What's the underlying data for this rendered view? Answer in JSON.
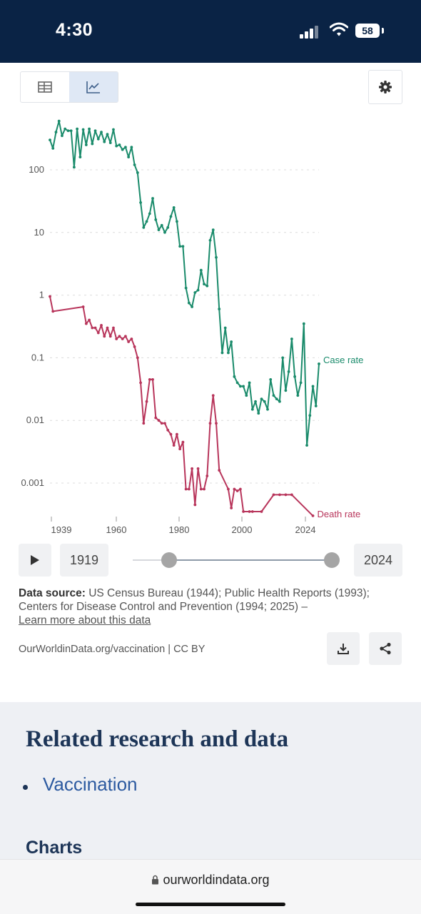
{
  "status_bar": {
    "time": "4:30",
    "battery": "58"
  },
  "chart_data": {
    "type": "line",
    "yscale": "log",
    "ylim": [
      0.00025,
      700
    ],
    "xlim": [
      1939,
      2024
    ],
    "x_ticks": [
      "1939",
      "1960",
      "1980",
      "2000",
      "2024"
    ],
    "y_ticks": [
      {
        "value": 100,
        "label": "100"
      },
      {
        "value": 10,
        "label": "10"
      },
      {
        "value": 1,
        "label": "1"
      },
      {
        "value": 0.1,
        "label": "0.1"
      },
      {
        "value": 0.01,
        "label": "0.01"
      },
      {
        "value": 0.001,
        "label": "0.001"
      }
    ],
    "grid": "horizontal dashed",
    "series": [
      {
        "name": "Case rate",
        "color": "#1a8b6b",
        "points": [
          [
            1939,
            300
          ],
          [
            1940,
            220
          ],
          [
            1941,
            400
          ],
          [
            1942,
            600
          ],
          [
            1943,
            350
          ],
          [
            1944,
            450
          ],
          [
            1945,
            420
          ],
          [
            1946,
            420
          ],
          [
            1947,
            110
          ],
          [
            1948,
            450
          ],
          [
            1949,
            160
          ],
          [
            1950,
            440
          ],
          [
            1951,
            250
          ],
          [
            1952,
            450
          ],
          [
            1953,
            260
          ],
          [
            1954,
            420
          ],
          [
            1955,
            310
          ],
          [
            1956,
            400
          ],
          [
            1957,
            280
          ],
          [
            1958,
            370
          ],
          [
            1959,
            270
          ],
          [
            1960,
            440
          ],
          [
            1961,
            240
          ],
          [
            1962,
            250
          ],
          [
            1963,
            210
          ],
          [
            1964,
            230
          ],
          [
            1965,
            160
          ],
          [
            1966,
            230
          ],
          [
            1967,
            120
          ],
          [
            1968,
            90
          ],
          [
            1969,
            30
          ],
          [
            1970,
            12
          ],
          [
            1971,
            15
          ],
          [
            1972,
            20
          ],
          [
            1973,
            35
          ],
          [
            1974,
            16
          ],
          [
            1975,
            11
          ],
          [
            1976,
            13
          ],
          [
            1977,
            10
          ],
          [
            1978,
            12
          ],
          [
            1979,
            18
          ],
          [
            1980,
            25
          ],
          [
            1981,
            15
          ],
          [
            1982,
            6
          ],
          [
            1983,
            6
          ],
          [
            1984,
            1.3
          ],
          [
            1985,
            0.75
          ],
          [
            1986,
            0.65
          ],
          [
            1987,
            1.1
          ],
          [
            1988,
            1.2
          ],
          [
            1989,
            2.5
          ],
          [
            1990,
            1.5
          ],
          [
            1991,
            1.4
          ],
          [
            1992,
            7.5
          ],
          [
            1993,
            11
          ],
          [
            1994,
            4
          ],
          [
            1995,
            0.6
          ],
          [
            1996,
            0.12
          ],
          [
            1997,
            0.3
          ],
          [
            1998,
            0.12
          ],
          [
            1999,
            0.18
          ],
          [
            2000,
            0.05
          ],
          [
            2001,
            0.04
          ],
          [
            2002,
            0.035
          ],
          [
            2003,
            0.035
          ],
          [
            2004,
            0.025
          ],
          [
            2005,
            0.04
          ],
          [
            2006,
            0.015
          ],
          [
            2007,
            0.02
          ],
          [
            2008,
            0.013
          ],
          [
            2009,
            0.022
          ],
          [
            2010,
            0.02
          ],
          [
            2011,
            0.015
          ],
          [
            2012,
            0.045
          ],
          [
            2013,
            0.025
          ],
          [
            2014,
            0.022
          ],
          [
            2015,
            0.02
          ],
          [
            2016,
            0.1
          ],
          [
            2017,
            0.03
          ],
          [
            2018,
            0.06
          ],
          [
            2019,
            0.2
          ],
          [
            2020,
            0.05
          ],
          [
            2021,
            0.025
          ],
          [
            2022,
            0.04
          ],
          [
            2023,
            0.35
          ],
          [
            2024,
            0.004
          ],
          [
            2025,
            0.012
          ],
          [
            2026,
            0.035
          ],
          [
            2027,
            0.017
          ],
          [
            2028,
            0.08
          ]
        ]
      },
      {
        "name": "Death rate",
        "color": "#b8355b",
        "points": [
          [
            1939,
            0.95
          ],
          [
            1940,
            0.55
          ],
          [
            1950,
            0.65
          ],
          [
            1951,
            0.35
          ],
          [
            1952,
            0.4
          ],
          [
            1953,
            0.3
          ],
          [
            1954,
            0.3
          ],
          [
            1955,
            0.25
          ],
          [
            1956,
            0.33
          ],
          [
            1957,
            0.22
          ],
          [
            1958,
            0.3
          ],
          [
            1959,
            0.22
          ],
          [
            1960,
            0.3
          ],
          [
            1961,
            0.2
          ],
          [
            1962,
            0.22
          ],
          [
            1963,
            0.2
          ],
          [
            1964,
            0.22
          ],
          [
            1965,
            0.18
          ],
          [
            1966,
            0.2
          ],
          [
            1967,
            0.15
          ],
          [
            1968,
            0.1
          ],
          [
            1969,
            0.04
          ],
          [
            1970,
            0.009
          ],
          [
            1971,
            0.02
          ],
          [
            1972,
            0.045
          ],
          [
            1973,
            0.045
          ],
          [
            1974,
            0.011
          ],
          [
            1975,
            0.01
          ],
          [
            1976,
            0.009
          ],
          [
            1977,
            0.009
          ],
          [
            1978,
            0.007
          ],
          [
            1979,
            0.006
          ],
          [
            1980,
            0.004
          ],
          [
            1981,
            0.006
          ],
          [
            1982,
            0.0035
          ],
          [
            1983,
            0.0045
          ],
          [
            1984,
            0.0008
          ],
          [
            1985,
            0.0008
          ],
          [
            1986,
            0.0017
          ],
          [
            1987,
            0.00045
          ],
          [
            1988,
            0.0017
          ],
          [
            1989,
            0.0008
          ],
          [
            1990,
            0.0008
          ],
          [
            1991,
            0.0013
          ],
          [
            1992,
            0.009
          ],
          [
            1993,
            0.025
          ],
          [
            1994,
            0.009
          ],
          [
            1995,
            0.0016
          ],
          [
            1998,
            0.0008
          ],
          [
            1999,
            0.0004
          ],
          [
            2000,
            0.0008
          ],
          [
            2001,
            0.00075
          ],
          [
            2002,
            0.0008
          ],
          [
            2003,
            0.00035
          ],
          [
            2005,
            0.00035
          ],
          [
            2006,
            0.00035
          ],
          [
            2009,
            0.00035
          ],
          [
            2013,
            0.00065
          ],
          [
            2015,
            0.00065
          ],
          [
            2017,
            0.00065
          ],
          [
            2019,
            0.00065
          ],
          [
            2026,
            0.0003
          ]
        ]
      }
    ]
  },
  "timeline": {
    "start_year": "1919",
    "end_year": "2024"
  },
  "footer": {
    "source_label": "Data source:",
    "source_text": "US Census Bureau (1944); Public Health Reports (1993); Centers for Disease Control and Prevention (1994; 2025) –",
    "learn_more": "Learn more about this data",
    "attribution": "OurWorldinData.org/vaccination | CC BY"
  },
  "related": {
    "title": "Related research and data",
    "link": "Vaccination",
    "charts_heading": "Charts"
  },
  "browser": {
    "url": "ourworldindata.org"
  }
}
